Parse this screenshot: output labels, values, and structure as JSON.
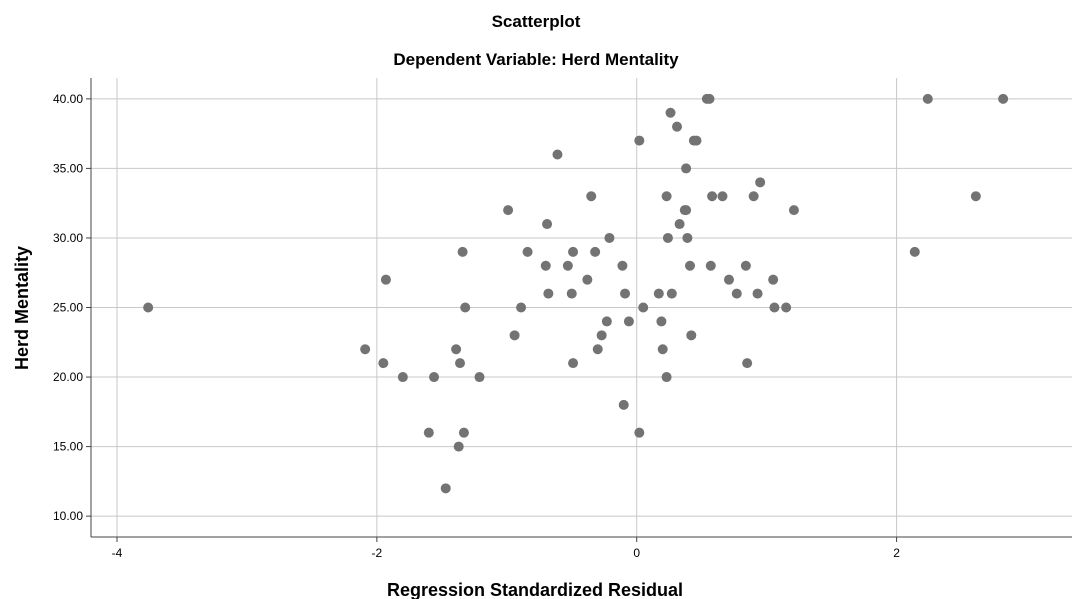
{
  "chart_data": {
    "type": "scatter",
    "title": "Scatterplot",
    "subtitle": "Dependent Variable: Herd Mentality",
    "xlabel": "Regression Standardized Residual",
    "ylabel": "Herd Mentality",
    "xlim": [
      -4.2,
      3.35
    ],
    "ylim": [
      8.5,
      41.5
    ],
    "xticks": [
      -4,
      -2,
      0,
      2
    ],
    "xtick_labels": [
      "-4",
      "-2",
      "0",
      "2"
    ],
    "yticks": [
      10,
      15,
      20,
      25,
      30,
      35,
      40
    ],
    "ytick_labels": [
      "10.00",
      "15.00",
      "20.00",
      "25.00",
      "30.00",
      "35.00",
      "40.00"
    ],
    "grid": true,
    "marker_color": "#737373",
    "points": [
      [
        -3.76,
        25
      ],
      [
        -2.09,
        22
      ],
      [
        -1.95,
        21
      ],
      [
        -1.93,
        27
      ],
      [
        -1.8,
        20
      ],
      [
        -1.6,
        16
      ],
      [
        -1.56,
        20
      ],
      [
        -1.47,
        12
      ],
      [
        -1.39,
        22
      ],
      [
        -1.37,
        15
      ],
      [
        -1.36,
        21
      ],
      [
        -1.34,
        29
      ],
      [
        -1.33,
        16
      ],
      [
        -1.32,
        25
      ],
      [
        -1.21,
        20
      ],
      [
        -0.99,
        32
      ],
      [
        -0.94,
        23
      ],
      [
        -0.89,
        25
      ],
      [
        -0.84,
        29
      ],
      [
        -0.7,
        28
      ],
      [
        -0.69,
        31
      ],
      [
        -0.68,
        26
      ],
      [
        -0.61,
        36
      ],
      [
        -0.53,
        28
      ],
      [
        -0.5,
        26
      ],
      [
        -0.49,
        21
      ],
      [
        -0.49,
        29
      ],
      [
        -0.38,
        27
      ],
      [
        -0.35,
        33
      ],
      [
        -0.32,
        29
      ],
      [
        -0.3,
        22
      ],
      [
        -0.27,
        23
      ],
      [
        -0.23,
        24
      ],
      [
        -0.21,
        30
      ],
      [
        -0.11,
        28
      ],
      [
        -0.1,
        18
      ],
      [
        -0.09,
        26
      ],
      [
        -0.06,
        24
      ],
      [
        0.02,
        37
      ],
      [
        0.02,
        16
      ],
      [
        0.05,
        25
      ],
      [
        0.17,
        26
      ],
      [
        0.19,
        24
      ],
      [
        0.2,
        22
      ],
      [
        0.23,
        33
      ],
      [
        0.23,
        20
      ],
      [
        0.24,
        30
      ],
      [
        0.26,
        39
      ],
      [
        0.27,
        26
      ],
      [
        0.31,
        38
      ],
      [
        0.33,
        31
      ],
      [
        0.37,
        32
      ],
      [
        0.38,
        32
      ],
      [
        0.38,
        35
      ],
      [
        0.39,
        30
      ],
      [
        0.41,
        28
      ],
      [
        0.42,
        23
      ],
      [
        0.44,
        37
      ],
      [
        0.46,
        37
      ],
      [
        0.54,
        40
      ],
      [
        0.56,
        40
      ],
      [
        0.57,
        28
      ],
      [
        0.58,
        33
      ],
      [
        0.66,
        33
      ],
      [
        0.71,
        27
      ],
      [
        0.77,
        26
      ],
      [
        0.84,
        28
      ],
      [
        0.85,
        21
      ],
      [
        0.9,
        33
      ],
      [
        0.93,
        26
      ],
      [
        0.95,
        34
      ],
      [
        1.05,
        27
      ],
      [
        1.06,
        25
      ],
      [
        1.15,
        25
      ],
      [
        1.21,
        32
      ],
      [
        2.14,
        29
      ],
      [
        2.24,
        40
      ],
      [
        2.61,
        33
      ],
      [
        2.82,
        40
      ]
    ]
  }
}
